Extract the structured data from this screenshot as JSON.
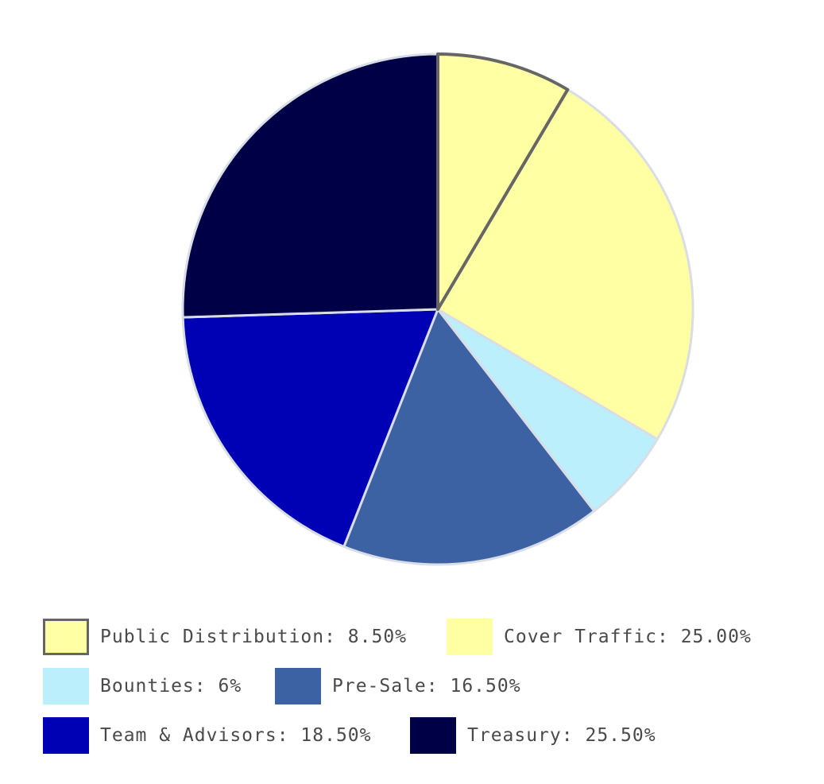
{
  "chart_data": {
    "type": "pie",
    "slices": [
      {
        "label": "Public Distribution: 8.50%",
        "value": 8.5,
        "color": "#ffffa3",
        "stroke": "#666666"
      },
      {
        "label": "Cover Traffic: 25.00%",
        "value": 25.0,
        "color": "#ffffa3",
        "stroke": "#d9dde6"
      },
      {
        "label": "Bounties: 6%",
        "value": 6.0,
        "color": "#bbeffb",
        "stroke": "#d9dde6"
      },
      {
        "label": "Pre-Sale: 16.50%",
        "value": 16.5,
        "color": "#3c62a4",
        "stroke": "#d9dde6"
      },
      {
        "label": "Team & Advisors: 18.50%",
        "value": 18.5,
        "color": "#0000b4",
        "stroke": "#d9dde6"
      },
      {
        "label": "Treasury: 25.50%",
        "value": 25.5,
        "color": "#000046",
        "stroke": "#d9dde6"
      }
    ],
    "start_angle": "top",
    "direction": "clockwise",
    "legend_position": "bottom"
  }
}
